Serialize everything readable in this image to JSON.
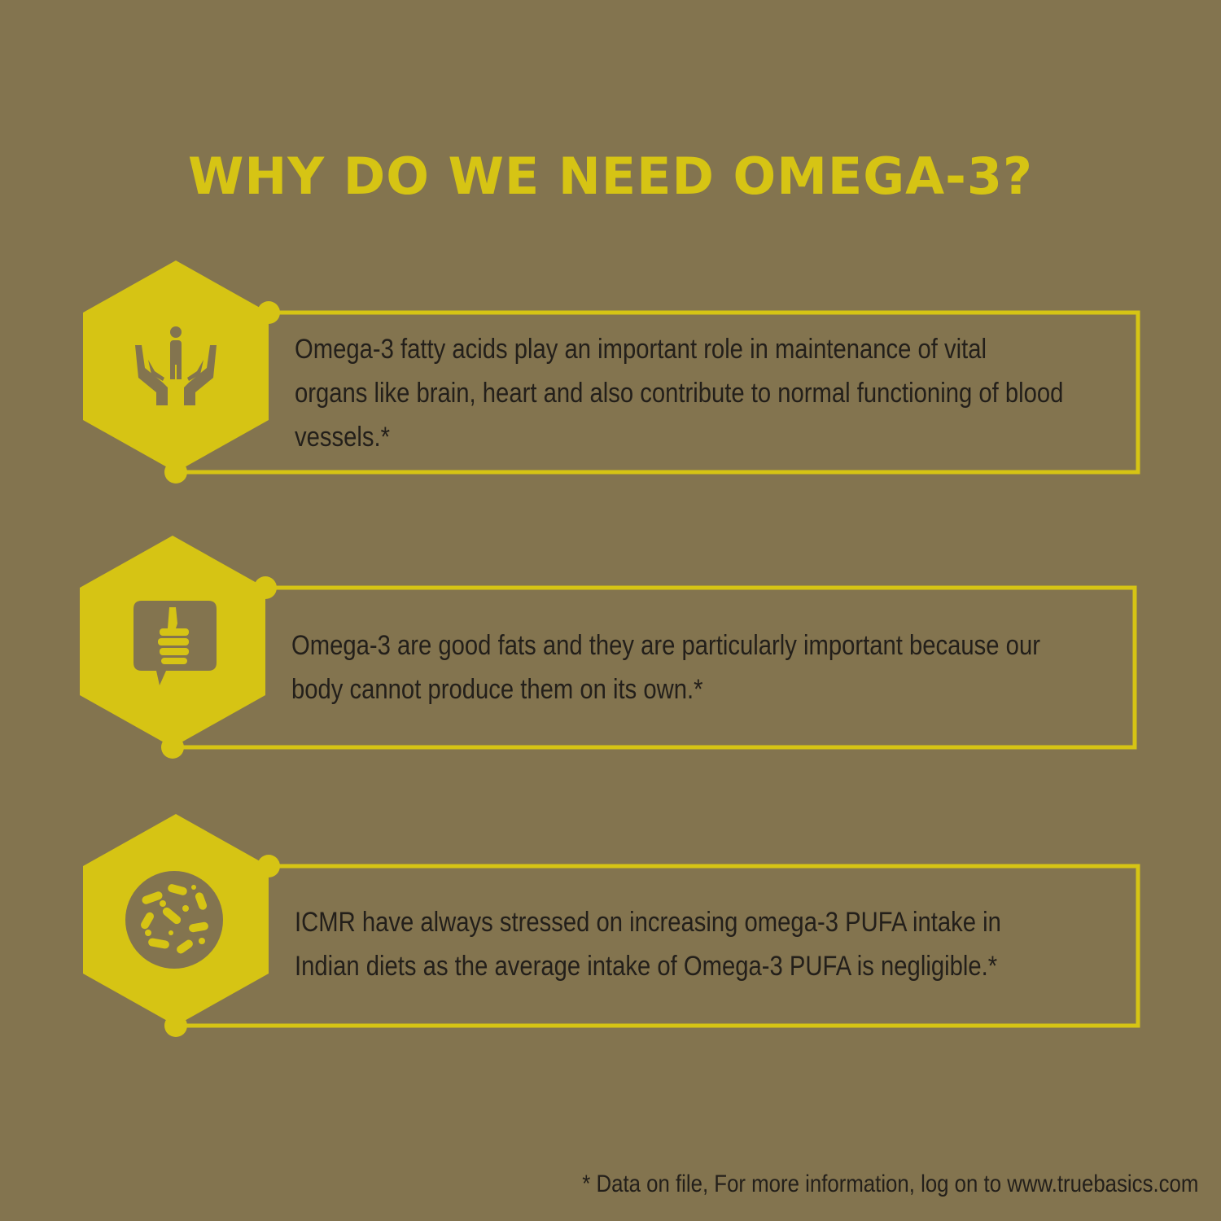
{
  "title": "WHY DO WE NEED OMEGA-3?",
  "accent_color": "#d6c414",
  "background_color": "#83744f",
  "cards": [
    {
      "icon": "hands-holding-person-icon",
      "text": "Omega-3 fatty acids play an important role in maintenance of vital organs like brain, heart and also contribute to normal functioning of blood vessels.*"
    },
    {
      "icon": "thumbs-up-speech-bubble-icon",
      "text": "Omega-3 are good fats and they are particularly important because our body cannot produce them on its own.*"
    },
    {
      "icon": "bacteria-petri-dish-icon",
      "text": "ICMR have always stressed on increasing omega-3 PUFA intake in Indian diets as the average intake of Omega-3 PUFA is negligible.*"
    }
  ],
  "footnote": "* Data on file, For more information, log on to www.truebasics.com"
}
